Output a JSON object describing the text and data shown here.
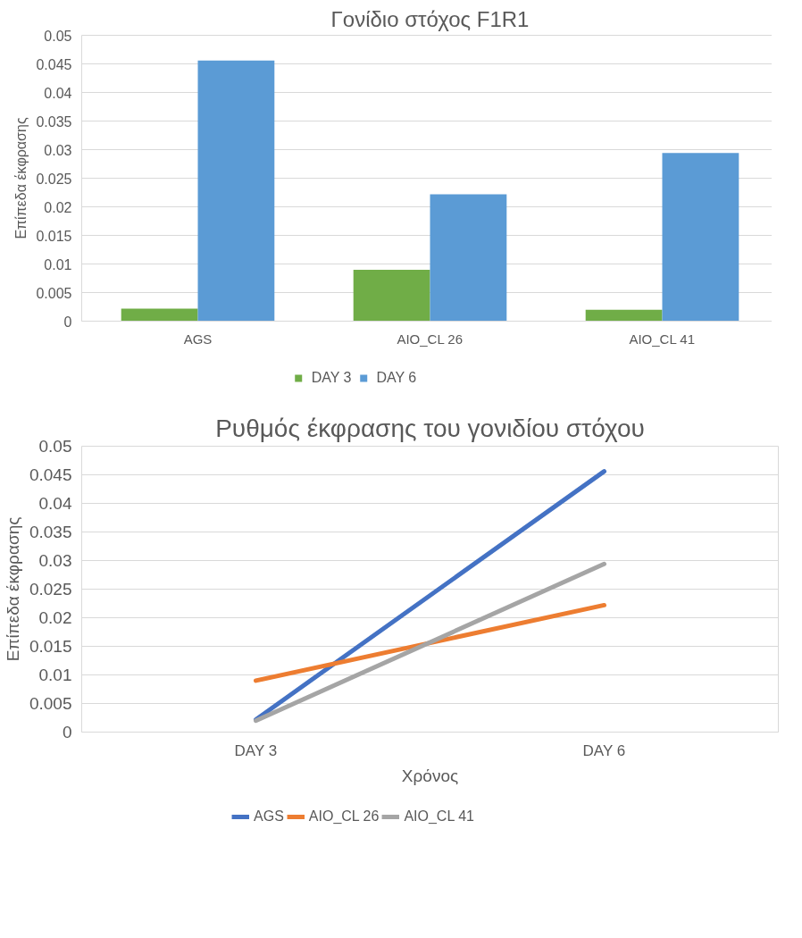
{
  "chart_data": [
    {
      "type": "bar",
      "title": "Γονίδιο στόχος F1R1",
      "ylabel": "Επίπεδα έκφρασης",
      "categories": [
        "AGS",
        "AIO_CL 26",
        "AIO_CL 41"
      ],
      "series": [
        {
          "name": "DAY 3",
          "color": "#70ad47",
          "values": [
            0.0022,
            0.009,
            0.002
          ]
        },
        {
          "name": "DAY 6",
          "color": "#5b9bd5",
          "values": [
            0.0456,
            0.0222,
            0.0294
          ]
        }
      ],
      "ylim": [
        0,
        0.05
      ],
      "yticks": [
        0,
        0.005,
        0.01,
        0.015,
        0.02,
        0.025,
        0.03,
        0.035,
        0.04,
        0.045,
        0.05
      ],
      "grid": "y",
      "legend": "bottom"
    },
    {
      "type": "line",
      "title": "Ρυθμός έκφρασης του γονιδίου στόχου",
      "xlabel": "Χρόνος",
      "ylabel": "Επίπεδα έκφρασης",
      "categories": [
        "DAY 3",
        "DAY 6"
      ],
      "series": [
        {
          "name": "AGS",
          "color": "#4472c4",
          "values": [
            0.0022,
            0.0456
          ]
        },
        {
          "name": "AIO_CL 26",
          "color": "#ed7d31",
          "values": [
            0.009,
            0.0222
          ]
        },
        {
          "name": "AIO_CL 41",
          "color": "#a5a5a5",
          "values": [
            0.002,
            0.0294
          ]
        }
      ],
      "ylim": [
        0,
        0.05
      ],
      "yticks": [
        0,
        0.005,
        0.01,
        0.015,
        0.02,
        0.025,
        0.03,
        0.035,
        0.04,
        0.045,
        0.05
      ],
      "grid": "y",
      "legend": "bottom",
      "marker": "none",
      "line_style": "solid"
    }
  ]
}
